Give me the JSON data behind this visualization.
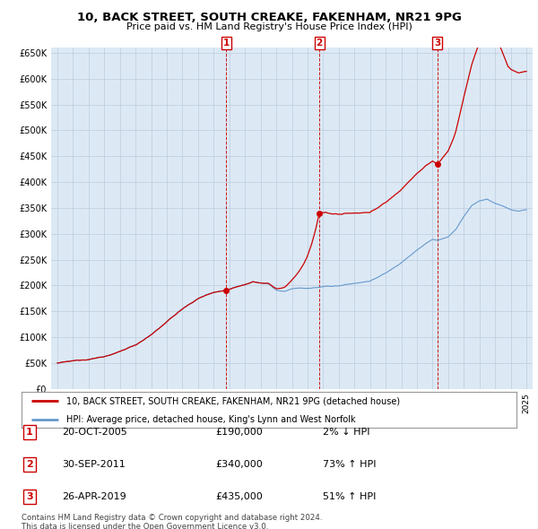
{
  "title": "10, BACK STREET, SOUTH CREAKE, FAKENHAM, NR21 9PG",
  "subtitle": "Price paid vs. HM Land Registry's House Price Index (HPI)",
  "property_label": "10, BACK STREET, SOUTH CREAKE, FAKENHAM, NR21 9PG (detached house)",
  "hpi_label": "HPI: Average price, detached house, King's Lynn and West Norfolk",
  "footer1": "Contains HM Land Registry data © Crown copyright and database right 2024.",
  "footer2": "This data is licensed under the Open Government Licence v3.0.",
  "sales": [
    {
      "num": 1,
      "date": "20-OCT-2005",
      "price": 190000,
      "pct": "2%",
      "dir": "↓"
    },
    {
      "num": 2,
      "date": "30-SEP-2011",
      "price": 340000,
      "pct": "73%",
      "dir": "↑"
    },
    {
      "num": 3,
      "date": "26-APR-2019",
      "price": 435000,
      "pct": "51%",
      "dir": "↑"
    }
  ],
  "sale_dates_decimal": [
    2005.8,
    2011.75,
    2019.32
  ],
  "sale_prices": [
    190000,
    340000,
    435000
  ],
  "ylim": [
    0,
    660000
  ],
  "yticks": [
    0,
    50000,
    100000,
    150000,
    200000,
    250000,
    300000,
    350000,
    400000,
    450000,
    500000,
    550000,
    600000,
    650000
  ],
  "property_color": "#cc0000",
  "hpi_color": "#6699cc",
  "plot_bg_color": "#dce9f5",
  "vline_color": "#cc0000",
  "background_color": "#ffffff",
  "grid_color": "#bbccdd"
}
